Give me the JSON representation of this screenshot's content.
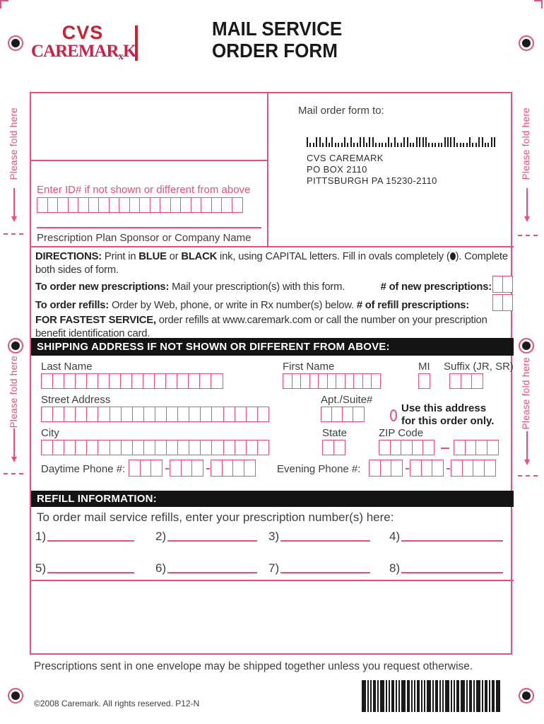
{
  "header": {
    "logo": {
      "cvs": "CVS",
      "caremark_pre": "CAREMAR",
      "caremark_sub": "x",
      "caremark_post": "K"
    },
    "title_line1": "MAIL SERVICE",
    "title_line2": "ORDER FORM"
  },
  "fold": {
    "label": "Please fold here"
  },
  "mail_to": {
    "heading": "Mail order form to:",
    "address_line1": "CVS CAREMARK",
    "address_line2": "PO BOX 2110",
    "address_line3": "PITTSBURGH PA 15230-2110"
  },
  "id_section": {
    "label": "Enter ID# if not shown or different from above",
    "sponsor_label": "Prescription Plan Sponsor or Company Name"
  },
  "directions": {
    "d1a": "DIRECTIONS:",
    "d1b": " Print in ",
    "d1c": "BLUE",
    "d1d": " or ",
    "d1e": "BLACK",
    "d1f": " ink, using CAPITAL letters. Fill in ovals completely (",
    "d1g": "). Complete both sides of form.",
    "d2a": "To order new prescriptions:",
    "d2b": " Mail your prescription(s) with this form.",
    "d2c": "# of new prescriptions:",
    "d3a": "To order refills:",
    "d3b": " Order by Web, phone, or write in Rx number(s) below. ",
    "d3c": "# of refill prescriptions:",
    "d4a": "FOR FASTEST SERVICE,",
    "d4b": " order refills at www.caremark.com or call the number on your prescription benefit identification card."
  },
  "shipping": {
    "header": "SHIPPING ADDRESS IF NOT SHOWN OR DIFFERENT FROM ABOVE:",
    "last_name": "Last Name",
    "first_name": "First Name",
    "mi": "MI",
    "suffix": "Suffix (JR, SR)",
    "street": "Street Address",
    "apt": "Apt./Suite#",
    "use_address_1": "Use this address",
    "use_address_2": "for this order only.",
    "city": "City",
    "state": "State",
    "zip": "ZIP Code",
    "daytime": "Daytime Phone #:",
    "evening": "Evening Phone #:"
  },
  "refill": {
    "header": "REFILL INFORMATION:",
    "instruction": "To order mail service refills, enter your prescription number(s) here:",
    "slots": [
      "1)",
      "2)",
      "3)",
      "4)",
      "5)",
      "6)",
      "7)",
      "8)"
    ]
  },
  "footer": {
    "note": "Prescriptions sent in one envelope may be shipped together unless you request otherwise.",
    "copyright": "©2008 Caremark. All rights reserved. P12-N"
  },
  "colors": {
    "pink": "#ee4d7d",
    "logo_red": "#cf2030",
    "caremark_red": "#d0204a",
    "bar_black": "#141414",
    "text": "#3f3f3f"
  },
  "barcodes": {
    "postal": "1001101010001010011011000010100110011110000011110000100110011",
    "code39": [
      6,
      2,
      2,
      4,
      2,
      6,
      2,
      2,
      4,
      2,
      2,
      6,
      4,
      2,
      2,
      4,
      2,
      2,
      6,
      2,
      4,
      2,
      2,
      6,
      2,
      2,
      4,
      6,
      2,
      4,
      2,
      6,
      2,
      4,
      2,
      4,
      6
    ]
  }
}
